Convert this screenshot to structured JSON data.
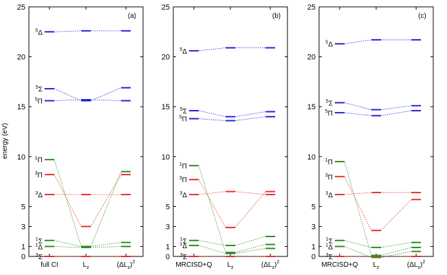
{
  "chart_data": [
    {
      "type": "level-diagram",
      "panel_label": "(a)",
      "ylabel": "energy (eV)",
      "ylim": [
        0,
        25
      ],
      "yticks": [
        0,
        1,
        3,
        5,
        10,
        15,
        20,
        25
      ],
      "categories": [
        {
          "main": "full CI",
          "sup": ""
        },
        {
          "main": "L",
          "sub": "z",
          "sup": ""
        },
        {
          "main": "(ΔL",
          "sub": "z",
          "close": ")",
          "sup": "2"
        }
      ],
      "states": [
        {
          "sup": "3",
          "greek": "Σ",
          "color": "#e8312e",
          "values": [
            0.0,
            0.0,
            0.0
          ]
        },
        {
          "sup": "1",
          "greek": "Δ",
          "color": "#2e8b22",
          "values": [
            1.0,
            0.9,
            1.0
          ]
        },
        {
          "sup": "1",
          "greek": "Σ",
          "color": "#2e8b22",
          "values": [
            1.6,
            1.0,
            1.4
          ]
        },
        {
          "sup": "3",
          "greek": "Δ",
          "color": "#e8312e",
          "values": [
            6.2,
            6.2,
            6.2
          ]
        },
        {
          "sup": "3",
          "greek": "Π",
          "color": "#e8312e",
          "values": [
            8.2,
            3.0,
            8.2
          ]
        },
        {
          "sup": "1",
          "greek": "Π",
          "color": "#2e8b22",
          "values": [
            9.7,
            1.0,
            8.5
          ]
        },
        {
          "sup": "5",
          "greek": "Π",
          "color": "#2222dd",
          "values": [
            15.6,
            15.7,
            15.6
          ]
        },
        {
          "sup": "5",
          "greek": "Σ",
          "color": "#2222dd",
          "values": [
            16.8,
            15.6,
            16.9
          ]
        },
        {
          "sup": "5",
          "greek": "Δ",
          "color": "#2222dd",
          "values": [
            22.5,
            22.6,
            22.6
          ]
        }
      ]
    },
    {
      "type": "level-diagram",
      "panel_label": "(b)",
      "ylim": [
        0,
        25
      ],
      "yticks": [
        0,
        1,
        3,
        5,
        10,
        15,
        20,
        25
      ],
      "categories": [
        {
          "main": "MRCISD+Q",
          "sup": ""
        },
        {
          "main": "L",
          "sub": "z",
          "sup": ""
        },
        {
          "main": "(ΔL",
          "sub": "z",
          "close": ")",
          "sup": "2"
        }
      ],
      "states": [
        {
          "sup": "3",
          "greek": "Σ",
          "color": "#e8312e",
          "values": [
            0.0,
            0.0,
            0.0
          ]
        },
        {
          "sup": "1",
          "greek": "Δ",
          "color": "#2e8b22",
          "values": [
            1.1,
            0.3,
            0.8
          ]
        },
        {
          "sup": "1",
          "greek": "Σ",
          "color": "#2e8b22",
          "values": [
            1.6,
            1.1,
            2.0
          ]
        },
        {
          "sup": "3",
          "greek": "Δ",
          "color": "#e8312e",
          "values": [
            6.2,
            6.5,
            6.2
          ]
        },
        {
          "sup": "3",
          "greek": "Π",
          "color": "#e8312e",
          "values": [
            7.7,
            2.9,
            6.5
          ]
        },
        {
          "sup": "1",
          "greek": "Π",
          "color": "#2e8b22",
          "values": [
            9.1,
            0.4,
            1.2
          ]
        },
        {
          "sup": "5",
          "greek": "Π",
          "color": "#2222dd",
          "values": [
            13.8,
            13.6,
            14.0
          ]
        },
        {
          "sup": "5",
          "greek": "Σ",
          "color": "#2222dd",
          "values": [
            14.6,
            14.0,
            14.5
          ]
        },
        {
          "sup": "5",
          "greek": "Δ",
          "color": "#2222dd",
          "values": [
            20.6,
            20.9,
            20.9
          ]
        }
      ]
    },
    {
      "type": "level-diagram",
      "panel_label": "(c)",
      "ylim": [
        0,
        25
      ],
      "yticks": [
        0,
        1,
        3,
        5,
        10,
        15,
        20,
        25
      ],
      "categories": [
        {
          "main": "MRCISD+Q",
          "sup": ""
        },
        {
          "main": "L",
          "sub": "z",
          "sup": ""
        },
        {
          "main": "(ΔL",
          "sub": "z",
          "close": ")",
          "sup": "2"
        }
      ],
      "states": [
        {
          "sup": "3",
          "greek": "Σ",
          "color": "#e8312e",
          "values": [
            0.0,
            0.0,
            0.0
          ]
        },
        {
          "sup": "1",
          "greek": "Δ",
          "color": "#2e8b22",
          "values": [
            1.0,
            -0.1,
            0.5
          ]
        },
        {
          "sup": "1",
          "greek": "Σ",
          "color": "#2e8b22",
          "values": [
            1.6,
            0.9,
            1.4
          ]
        },
        {
          "sup": "3",
          "greek": "Δ",
          "color": "#e8312e",
          "values": [
            6.2,
            6.4,
            6.4
          ]
        },
        {
          "sup": "3",
          "greek": "Π",
          "color": "#e8312e",
          "values": [
            8.0,
            2.6,
            5.7
          ]
        },
        {
          "sup": "1",
          "greek": "Π",
          "color": "#2e8b22",
          "values": [
            9.5,
            0.1,
            0.9
          ]
        },
        {
          "sup": "5",
          "greek": "Π",
          "color": "#2222dd",
          "values": [
            14.4,
            14.1,
            14.6
          ]
        },
        {
          "sup": "5",
          "greek": "Σ",
          "color": "#2222dd",
          "values": [
            15.4,
            14.7,
            15.1
          ]
        },
        {
          "sup": "5",
          "greek": "Δ",
          "color": "#2222dd",
          "values": [
            21.3,
            21.7,
            21.7
          ]
        }
      ]
    }
  ]
}
